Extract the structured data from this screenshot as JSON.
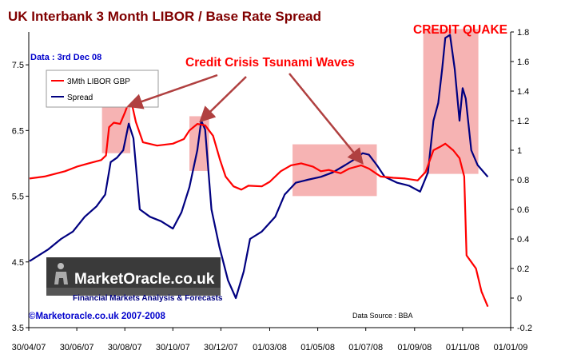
{
  "chart_data": {
    "type": "line",
    "title": "UK Interbank  3 Month LIBOR / Base Rate Spread",
    "date_note": "Data : 3rd Dec 08",
    "source": "Data Source : BBA",
    "copyright": "©Marketoracle.co.uk 2007-2008",
    "logo": {
      "name": "MarketOracle.co.uk",
      "tagline": "Financial Markets Analysis & Forecasts"
    },
    "colors": {
      "libor": "#ff0000",
      "spread": "#000080",
      "title": "#800000",
      "annotation": "#ff0000",
      "highlight": "#f08080",
      "date_note": "#0000cc"
    },
    "legend": {
      "position": "top-left",
      "entries": [
        "3Mth LIBOR GBP",
        "Spread"
      ]
    },
    "grid": false,
    "xlim": [
      "2007-04-30",
      "2009-01-01"
    ],
    "x_ticks": [
      "30/04/07",
      "30/06/07",
      "30/08/07",
      "30/10/07",
      "30/12/07",
      "01/03/08",
      "01/05/08",
      "01/07/08",
      "01/09/08",
      "01/11/08",
      "01/01/09"
    ],
    "y_left": {
      "lim": [
        3.5,
        8.0
      ],
      "ticks": [
        "3.5",
        "4.5",
        "5.5",
        "6.5",
        "7.5"
      ]
    },
    "y_right": {
      "lim": [
        -0.2,
        1.8
      ],
      "ticks": [
        "-0.2",
        "0",
        "0.2",
        "0.4",
        "0.6",
        "0.8",
        "1",
        "1.2",
        "1.4",
        "1.6",
        "1.8"
      ]
    },
    "annotations": {
      "tsunami": "Credit Crisis Tsunami Waves",
      "quake": "CREDIT QUAKE"
    },
    "highlight_regions": [
      {
        "x": [
          "2007-08-01",
          "2007-09-06"
        ],
        "y": [
          0.98,
          1.36
        ]
      },
      {
        "x": [
          "2007-11-20",
          "2007-12-15"
        ],
        "y": [
          0.86,
          1.23
        ]
      },
      {
        "x": [
          "2008-03-30",
          "2008-07-15"
        ],
        "y": [
          0.69,
          1.04
        ]
      },
      {
        "x": [
          "2008-09-12",
          "2008-11-21"
        ],
        "y": [
          0.84,
          1.82
        ]
      }
    ],
    "series": [
      {
        "name": "3Mth LIBOR GBP",
        "axis": "left",
        "points": [
          [
            "2007-05-01",
            5.77
          ],
          [
            "2007-05-20",
            5.8
          ],
          [
            "2007-06-15",
            5.88
          ],
          [
            "2007-06-30",
            5.95
          ],
          [
            "2007-07-15",
            6.0
          ],
          [
            "2007-07-31",
            6.05
          ],
          [
            "2007-08-06",
            6.12
          ],
          [
            "2007-08-10",
            6.55
          ],
          [
            "2007-08-16",
            6.62
          ],
          [
            "2007-08-24",
            6.6
          ],
          [
            "2007-08-30",
            6.77
          ],
          [
            "2007-09-04",
            6.93
          ],
          [
            "2007-09-08",
            6.9
          ],
          [
            "2007-09-13",
            6.63
          ],
          [
            "2007-09-22",
            6.32
          ],
          [
            "2007-10-10",
            6.27
          ],
          [
            "2007-10-30",
            6.3
          ],
          [
            "2007-11-13",
            6.37
          ],
          [
            "2007-11-20",
            6.5
          ],
          [
            "2007-11-30",
            6.6
          ],
          [
            "2007-12-10",
            6.58
          ],
          [
            "2007-12-20",
            6.42
          ],
          [
            "2007-12-29",
            6.05
          ],
          [
            "2008-01-05",
            5.8
          ],
          [
            "2008-01-15",
            5.65
          ],
          [
            "2008-01-25",
            5.6
          ],
          [
            "2008-02-03",
            5.66
          ],
          [
            "2008-02-20",
            5.65
          ],
          [
            "2008-03-01",
            5.72
          ],
          [
            "2008-03-15",
            5.88
          ],
          [
            "2008-03-28",
            5.97
          ],
          [
            "2008-04-10",
            6.0
          ],
          [
            "2008-04-25",
            5.95
          ],
          [
            "2008-05-05",
            5.88
          ],
          [
            "2008-05-15",
            5.9
          ],
          [
            "2008-05-30",
            5.85
          ],
          [
            "2008-06-10",
            5.92
          ],
          [
            "2008-06-25",
            5.97
          ],
          [
            "2008-07-05",
            5.92
          ],
          [
            "2008-07-20",
            5.8
          ],
          [
            "2008-08-05",
            5.78
          ],
          [
            "2008-08-20",
            5.77
          ],
          [
            "2008-09-05",
            5.74
          ],
          [
            "2008-09-15",
            5.87
          ],
          [
            "2008-09-25",
            6.2
          ],
          [
            "2008-10-03",
            6.25
          ],
          [
            "2008-10-10",
            6.3
          ],
          [
            "2008-10-20",
            6.2
          ],
          [
            "2008-10-28",
            6.08
          ],
          [
            "2008-11-03",
            5.8
          ],
          [
            "2008-11-06",
            4.6
          ],
          [
            "2008-11-12",
            4.5
          ],
          [
            "2008-11-18",
            4.4
          ],
          [
            "2008-11-25",
            4.05
          ],
          [
            "2008-12-03",
            3.82
          ]
        ]
      },
      {
        "name": "Spread",
        "axis": "right",
        "points": [
          [
            "2007-05-01",
            0.25
          ],
          [
            "2007-05-10",
            0.28
          ],
          [
            "2007-05-25",
            0.33
          ],
          [
            "2007-06-10",
            0.4
          ],
          [
            "2007-06-25",
            0.45
          ],
          [
            "2007-07-10",
            0.55
          ],
          [
            "2007-07-25",
            0.62
          ],
          [
            "2007-08-05",
            0.7
          ],
          [
            "2007-08-12",
            0.92
          ],
          [
            "2007-08-20",
            0.95
          ],
          [
            "2007-08-28",
            1.0
          ],
          [
            "2007-09-04",
            1.18
          ],
          [
            "2007-09-10",
            1.08
          ],
          [
            "2007-09-18",
            0.6
          ],
          [
            "2007-10-01",
            0.55
          ],
          [
            "2007-10-15",
            0.52
          ],
          [
            "2007-10-30",
            0.47
          ],
          [
            "2007-11-10",
            0.58
          ],
          [
            "2007-11-20",
            0.75
          ],
          [
            "2007-11-30",
            1.0
          ],
          [
            "2007-12-05",
            1.2
          ],
          [
            "2007-12-10",
            1.14
          ],
          [
            "2007-12-18",
            0.6
          ],
          [
            "2007-12-28",
            0.35
          ],
          [
            "2008-01-08",
            0.12
          ],
          [
            "2008-01-18",
            0.0
          ],
          [
            "2008-01-28",
            0.18
          ],
          [
            "2008-02-05",
            0.4
          ],
          [
            "2008-02-20",
            0.45
          ],
          [
            "2008-03-08",
            0.55
          ],
          [
            "2008-03-20",
            0.7
          ],
          [
            "2008-04-03",
            0.78
          ],
          [
            "2008-04-18",
            0.8
          ],
          [
            "2008-05-05",
            0.82
          ],
          [
            "2008-05-20",
            0.85
          ],
          [
            "2008-06-05",
            0.9
          ],
          [
            "2008-06-20",
            0.95
          ],
          [
            "2008-06-27",
            0.98
          ],
          [
            "2008-07-05",
            0.97
          ],
          [
            "2008-07-15",
            0.9
          ],
          [
            "2008-07-25",
            0.82
          ],
          [
            "2008-08-10",
            0.78
          ],
          [
            "2008-08-25",
            0.76
          ],
          [
            "2008-09-08",
            0.72
          ],
          [
            "2008-09-18",
            0.85
          ],
          [
            "2008-09-25",
            1.2
          ],
          [
            "2008-10-01",
            1.32
          ],
          [
            "2008-10-06",
            1.55
          ],
          [
            "2008-10-10",
            1.76
          ],
          [
            "2008-10-16",
            1.78
          ],
          [
            "2008-10-22",
            1.55
          ],
          [
            "2008-10-28",
            1.2
          ],
          [
            "2008-11-01",
            1.42
          ],
          [
            "2008-11-05",
            1.35
          ],
          [
            "2008-11-12",
            1.0
          ],
          [
            "2008-11-20",
            0.9
          ],
          [
            "2008-12-03",
            0.82
          ]
        ]
      }
    ]
  }
}
